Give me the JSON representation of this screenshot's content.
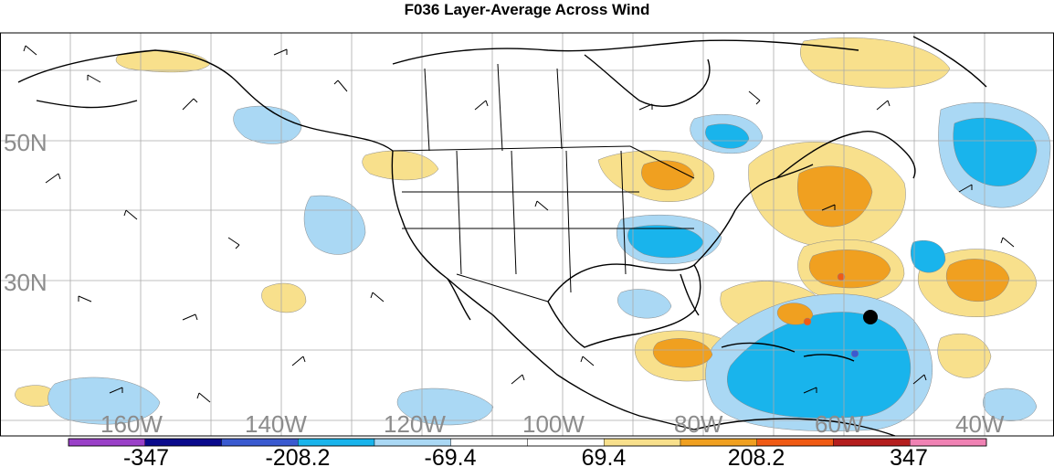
{
  "title": "F036 Layer-Average Across Wind",
  "latitude_labels": [
    "50N",
    "30N"
  ],
  "longitude_labels": [
    "160W",
    "140W",
    "120W",
    "100W",
    "80W",
    "60W",
    "40W"
  ],
  "colorbar": {
    "labels": [
      "-347",
      "-208.2",
      "-69.4",
      "69.4",
      "208.2",
      "347"
    ],
    "colors": [
      "#9a40c8",
      "#0a0a8c",
      "#3a5ad0",
      "#19b4ec",
      "#aad8f4",
      "#ffffff",
      "#ffffff",
      "#f8e08c",
      "#f0a020",
      "#f05a14",
      "#b41e1e",
      "#f082b4"
    ]
  },
  "colors": {
    "light_blue": "#aad8f4",
    "blue": "#19b4ec",
    "dark_blue": "#3a5ad0",
    "light_yellow": "#f8e08c",
    "orange": "#f0a020",
    "red": "#f05a14",
    "grid": "#aaaaaa"
  },
  "storm_marker": "hurricane-center-marker"
}
